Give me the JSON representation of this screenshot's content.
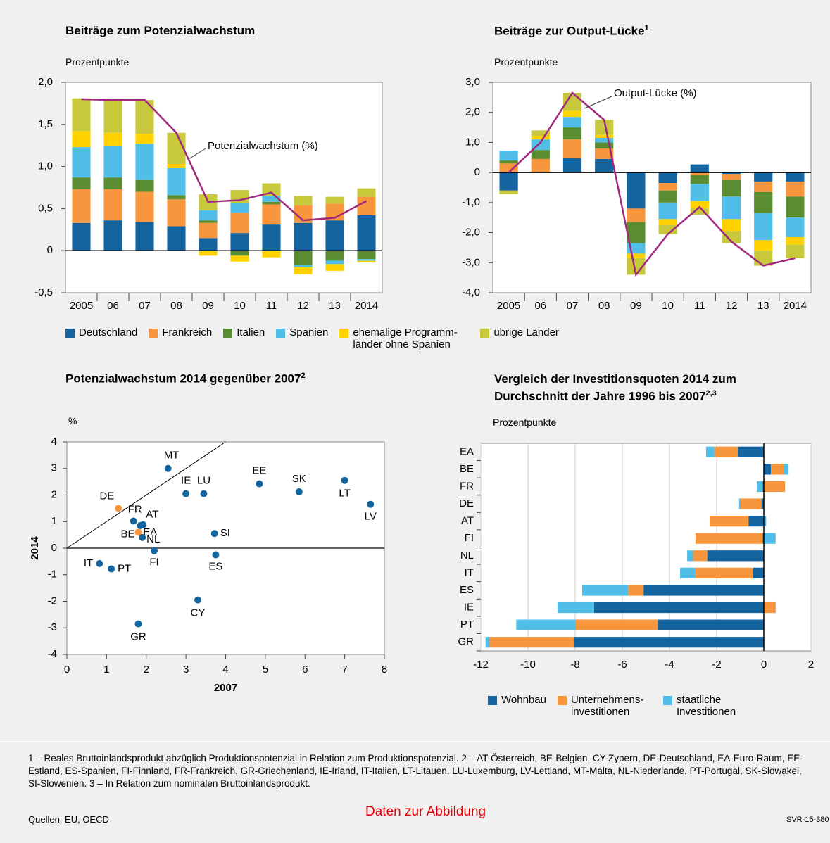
{
  "chart_data": [
    {
      "type": "bar",
      "title": "Beiträge zum Potenzialwachstum",
      "unit": "Prozentpunkte",
      "categories": [
        "2005",
        "06",
        "07",
        "08",
        "09",
        "10",
        "11",
        "12",
        "13",
        "2014"
      ],
      "ylim": [
        -0.5,
        2.0
      ],
      "yticks": [
        {
          "value": -0.5,
          "label": "-0,5"
        },
        0,
        {
          "value": 0.5,
          "label": "0,5"
        },
        {
          "value": 1.0,
          "label": "1,0"
        },
        {
          "value": 1.5,
          "label": "1,5"
        },
        {
          "value": 2.0,
          "label": "2,0"
        }
      ],
      "series": [
        {
          "name": "Deutschland",
          "color": "#1464a0",
          "values": [
            0.33,
            0.36,
            0.34,
            0.29,
            0.15,
            0.21,
            0.31,
            0.33,
            0.36,
            0.42
          ]
        },
        {
          "name": "Frankreich",
          "color": "#f7963c",
          "values": [
            0.4,
            0.37,
            0.36,
            0.32,
            0.18,
            0.24,
            0.24,
            0.21,
            0.2,
            0.22
          ]
        },
        {
          "name": "Italien",
          "color": "#5a8c32",
          "values": [
            0.14,
            0.14,
            0.14,
            0.05,
            0.03,
            -0.06,
            0.03,
            -0.17,
            -0.12,
            -0.1
          ]
        },
        {
          "name": "Spanien",
          "color": "#50bee6",
          "values": [
            0.36,
            0.37,
            0.43,
            0.32,
            0.12,
            0.12,
            0.07,
            -0.03,
            -0.04,
            -0.02
          ]
        },
        {
          "name": "ehemalige Programm­länder ohne Spanien",
          "color": "#ffd200",
          "values": [
            0.19,
            0.16,
            0.12,
            0.05,
            -0.06,
            -0.07,
            -0.08,
            -0.08,
            -0.08,
            -0.02
          ]
        },
        {
          "name": "übrige Länder",
          "color": "#c8c83c",
          "values": [
            0.39,
            0.39,
            0.4,
            0.37,
            0.19,
            0.15,
            0.15,
            0.11,
            0.08,
            0.1
          ]
        }
      ],
      "line": {
        "name": "Potenzialwachstum (%)",
        "color": "#a0287d",
        "values": [
          1.8,
          1.79,
          1.79,
          1.4,
          0.58,
          0.6,
          0.69,
          0.36,
          0.39,
          0.59
        ]
      }
    },
    {
      "type": "bar",
      "title": "Beiträge zur Output-Lücke",
      "title_note": "1",
      "unit": "Prozentpunkte",
      "categories": [
        "2005",
        "06",
        "07",
        "08",
        "09",
        "10",
        "11",
        "12",
        "13",
        "2014"
      ],
      "ylim": [
        -4,
        3
      ],
      "yticks": [
        {
          "value": -4,
          "label": "-4,0"
        },
        {
          "value": -3,
          "label": "-3,0"
        },
        {
          "value": -2,
          "label": "-2,0"
        },
        {
          "value": -1,
          "label": "-1,0"
        },
        0,
        {
          "value": 1,
          "label": "1,0"
        },
        {
          "value": 2,
          "label": "2,0"
        },
        {
          "value": 3,
          "label": "3,0"
        }
      ],
      "series": [
        {
          "color": "#1464a0",
          "values": [
            -0.6,
            0,
            0.48,
            0.45,
            -1.2,
            -0.35,
            0.27,
            -0.05,
            -0.3,
            -0.3
          ]
        },
        {
          "color": "#f7963c",
          "values": [
            0.3,
            0.45,
            0.62,
            0.35,
            -0.45,
            -0.25,
            -0.08,
            -0.2,
            -0.35,
            -0.5
          ]
        },
        {
          "color": "#5a8c32",
          "values": [
            0.1,
            0.3,
            0.4,
            0.2,
            -0.7,
            -0.4,
            -0.3,
            -0.55,
            -0.7,
            -0.7
          ]
        },
        {
          "color": "#50bee6",
          "values": [
            0.33,
            0.35,
            0.35,
            0.15,
            -0.35,
            -0.55,
            -0.57,
            -0.75,
            -0.9,
            -0.65
          ]
        },
        {
          "color": "#ffd200",
          "values": [
            0,
            0.12,
            0.2,
            0.1,
            -0.15,
            -0.2,
            -0.25,
            -0.4,
            -0.35,
            -0.25
          ]
        },
        {
          "color": "#c8c83c",
          "values": [
            -0.12,
            0.18,
            0.6,
            0.5,
            -0.55,
            -0.3,
            -0.2,
            -0.4,
            -0.5,
            -0.45
          ]
        }
      ],
      "line": {
        "name": "Output-Lücke (%)",
        "color": "#a0287d",
        "values": [
          0.0,
          1.0,
          2.65,
          1.75,
          -3.4,
          -2.05,
          -1.15,
          -2.3,
          -3.1,
          -2.85
        ]
      }
    },
    {
      "type": "scatter",
      "title": "Potenzialwachstum 2014 gegenüber 2007",
      "title_note": "2",
      "unit": "%",
      "xlabel": "2007",
      "ylabel": "2014",
      "xlim": [
        0,
        8
      ],
      "xticks": [
        0,
        1,
        2,
        3,
        4,
        5,
        6,
        7,
        8
      ],
      "ylim": [
        -4,
        4
      ],
      "yticks": [
        -4,
        -3,
        -2,
        -1,
        0,
        1,
        2,
        3,
        4
      ],
      "labels": [
        "MT",
        "DE",
        "FR",
        "AT",
        "EA",
        "BE",
        "NL",
        "FI",
        "IE",
        "LU",
        "EE",
        "SK",
        "LT",
        "LV",
        "SI",
        "ES",
        "CY",
        "GR",
        "IT",
        "PT"
      ],
      "x": [
        2.55,
        1.3,
        1.68,
        1.92,
        1.85,
        1.8,
        1.9,
        2.2,
        3.0,
        3.45,
        4.85,
        5.85,
        7.0,
        7.65,
        3.72,
        3.75,
        3.3,
        1.8,
        0.82,
        1.12
      ],
      "y": [
        3.0,
        1.5,
        1.02,
        0.88,
        0.85,
        0.6,
        0.4,
        -0.1,
        2.05,
        2.05,
        2.42,
        2.12,
        2.55,
        1.65,
        0.55,
        -0.25,
        -1.95,
        -2.85,
        -0.58,
        -0.78
      ],
      "colors": [
        "#1464a0",
        "#f7963c",
        "#1464a0",
        "#1464a0",
        "#1464a0",
        "#f7963c",
        "#1464a0",
        "#1464a0",
        "#1464a0",
        "#1464a0",
        "#1464a0",
        "#1464a0",
        "#1464a0",
        "#1464a0",
        "#1464a0",
        "#1464a0",
        "#1464a0",
        "#1464a0",
        "#1464a0",
        "#1464a0"
      ]
    },
    {
      "type": "bar",
      "horizontal": true,
      "title": "Vergleich der Investitionsquoten 2014 zum Durchschnitt der Jahre 1996 bis 2007",
      "title_note": "2,3",
      "unit": "Prozentpunkte",
      "categories": [
        "EA",
        "BE",
        "FR",
        "DE",
        "AT",
        "FI",
        "NL",
        "IT",
        "ES",
        "IE",
        "PT",
        "GR"
      ],
      "xlim": [
        -12,
        2
      ],
      "xticks": [
        -12,
        -10,
        -8,
        -6,
        -4,
        -2,
        0,
        2
      ],
      "series": [
        {
          "name": "Wohnbau",
          "color": "#1464a0",
          "values": [
            -1.1,
            0.3,
            -0.05,
            -0.1,
            -0.65,
            -0.05,
            -2.4,
            -0.45,
            -5.1,
            -7.2,
            -4.5,
            -8.05
          ]
        },
        {
          "name": "Unternehmens­investitionen",
          "color": "#f7963c",
          "values": [
            -1.0,
            0.55,
            0.9,
            -0.9,
            -1.65,
            -2.85,
            -0.6,
            -2.45,
            -0.65,
            0.5,
            -3.5,
            -3.6
          ]
        },
        {
          "name": "staatliche Investitionen",
          "color": "#50bee6",
          "values": [
            -0.35,
            0.2,
            -0.25,
            -0.05,
            0.1,
            0.5,
            -0.25,
            -0.65,
            -1.95,
            -1.55,
            -2.5,
            -0.15
          ]
        }
      ]
    }
  ],
  "footer": {
    "notes": "1 – Reales Bruttoinlandsprodukt abzüglich Produktionspotenzial in Relation zum Produktionspotenzial.  2 – AT-Österreich, BE-Belgien, CY-Zypern, DE-Deutschland, EA-Euro-Raum, EE-Estland, ES-Spanien, FI-Finnland, FR-Frankreich, GR-Griechenland, IE-Irland, IT-Italien, LT-Litauen, LU-Luxemburg, LV-Lettland, MT-Malta, NL-Niederlande, PT-Portugal, SK-Slowakei, SI-Slowenien.  3 – In Relation zum nominalen Bruttoinlands­produkt.",
    "source": "Quellen: EU, OECD",
    "link": "Daten zur Abbildung",
    "code": "SVR-15-380"
  }
}
